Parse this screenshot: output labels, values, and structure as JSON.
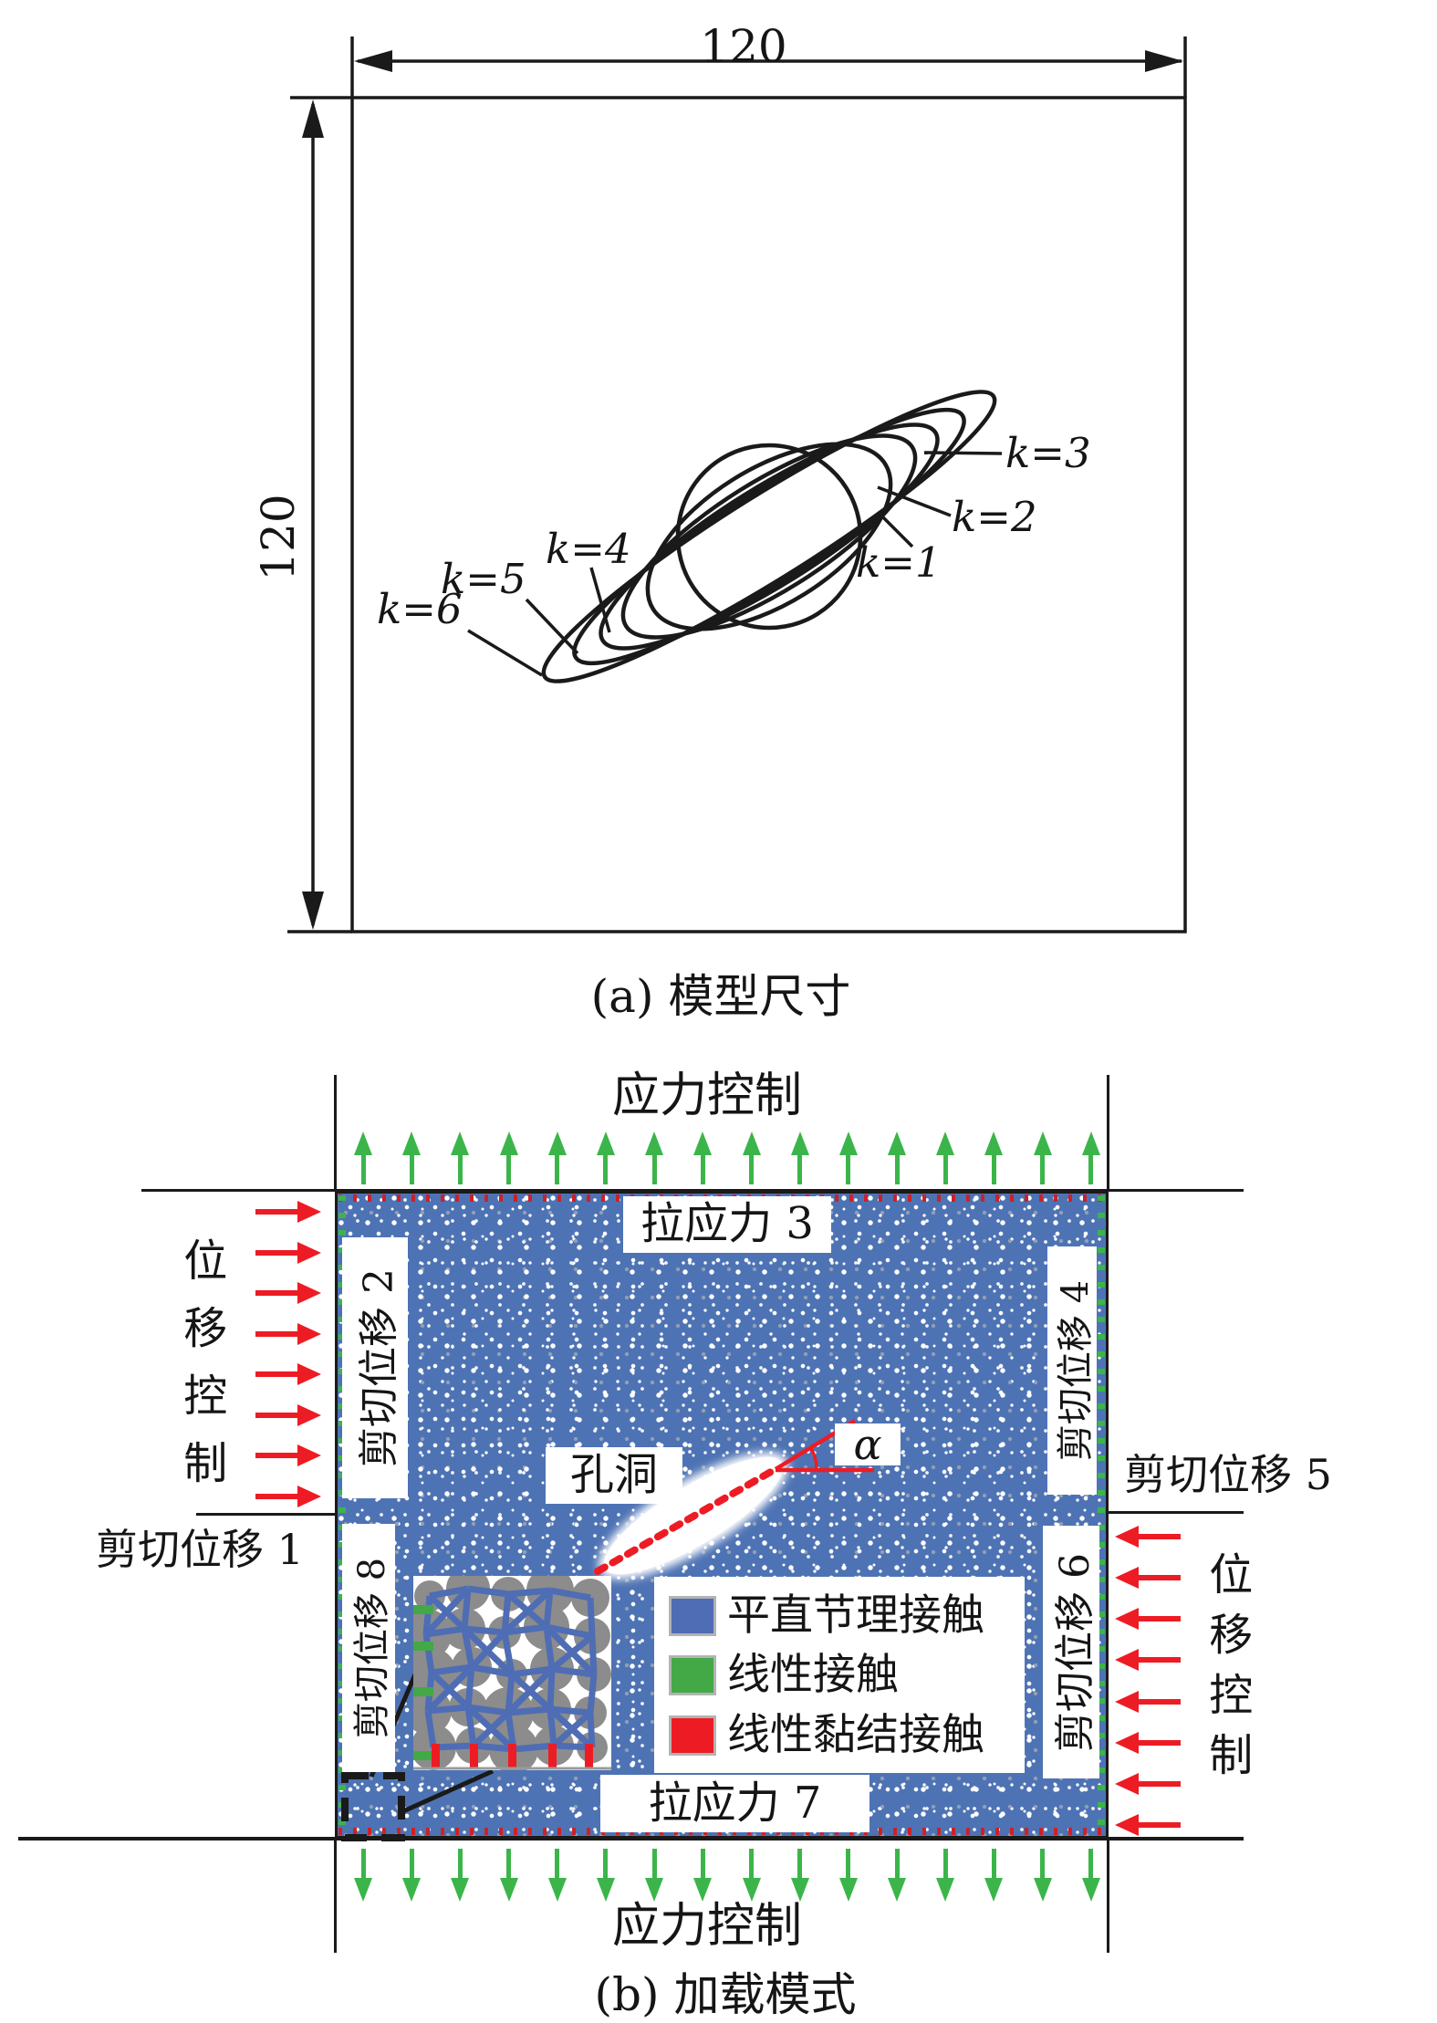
{
  "figure": {
    "part_a": {
      "caption": "(a) 模型尺寸",
      "width_label": "120",
      "height_label": "120",
      "curve_labels": [
        "k=1",
        "k=2",
        "k=3",
        "k=4",
        "k=5",
        "k=6"
      ]
    },
    "part_b": {
      "caption": "(b) 加载模式",
      "stress_control_top": "应力控制",
      "stress_control_bottom": "应力控制",
      "displacement_control_left": "位移控制",
      "displacement_control_right": "位移控制",
      "tensile_stress_top": "拉应力 3",
      "tensile_stress_bottom": "拉应力 7",
      "shear_disp_1": "剪切位移 1",
      "shear_disp_2": "剪切位移 2",
      "shear_disp_4": "剪切位移 4",
      "shear_disp_5": "剪切位移 5",
      "shear_disp_6": "剪切位移 6",
      "shear_disp_8": "剪切位移 8",
      "cavity_label": "孔洞",
      "angle_label": "α",
      "legend": [
        {
          "label": "平直节理接触",
          "color": "#4e6db4"
        },
        {
          "label": "线性接触",
          "color": "#43a947"
        },
        {
          "label": "线性黏结接触",
          "color": "#ed1c24"
        }
      ],
      "arrows": {
        "top_count": 16,
        "bottom_count": 16,
        "left_count": 8,
        "right_count": 8,
        "stress_color": "#3bb54a",
        "displacement_color": "#ed1c24"
      },
      "colors": {
        "specimen": "#4e73b4"
      }
    }
  }
}
